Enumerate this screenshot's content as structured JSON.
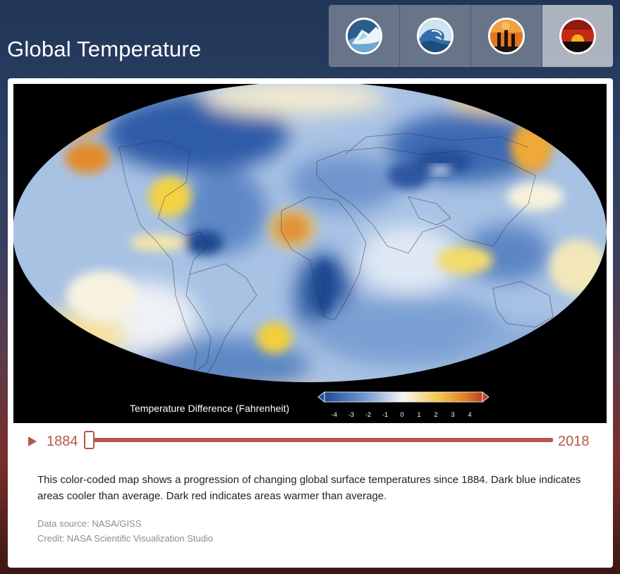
{
  "page": {
    "title": "Global Temperature"
  },
  "nav": {
    "tabs": [
      {
        "icon": "ice-sheet-icon",
        "active": false
      },
      {
        "icon": "ocean-wave-icon",
        "active": false
      },
      {
        "icon": "smokestack-icon",
        "active": false
      },
      {
        "icon": "sunset-icon",
        "active": true
      }
    ]
  },
  "visualization": {
    "legend_label": "Temperature Difference (Fahrenheit)",
    "scale_ticks": [
      "-4",
      "-3",
      "-2",
      "-1",
      "0",
      "1",
      "2",
      "3",
      "4"
    ],
    "colors": {
      "cold": "#1f4f9c",
      "cool": "#9bb8df",
      "neutral": "#f4f4f2",
      "warm": "#f3d85a",
      "hot": "#e28a2a",
      "hottest": "#c7452b"
    }
  },
  "timeline": {
    "start_year": "1884",
    "end_year": "2018",
    "current_position": 0.0,
    "accent_color": "#b7574b"
  },
  "content": {
    "description": "This color-coded map shows a progression of changing global surface temperatures since 1884. Dark blue indicates areas cooler than average. Dark red indicates areas warmer than average.",
    "data_source": "Data source: NASA/GISS",
    "credit": "Credit: NASA Scientific Visualization Studio"
  }
}
